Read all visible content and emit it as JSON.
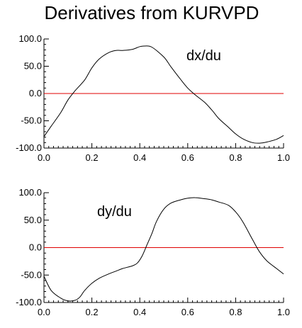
{
  "title": "Derivatives from KURVPD",
  "colors": {
    "axis": "#000000",
    "curve": "#000000",
    "zero_line": "#e00000",
    "background": "#ffffff"
  },
  "chart_data": [
    {
      "type": "line",
      "annotation": "dx/du",
      "xlim": [
        0.0,
        1.0
      ],
      "ylim": [
        -100.0,
        100.0
      ],
      "x_ticks": [
        "0.0",
        "0.2",
        "0.4",
        "0.6",
        "0.8",
        "1.0"
      ],
      "y_ticks": [
        "100.0",
        "50.0",
        "0.0",
        "-50.0",
        "-100.0"
      ],
      "reference_line_y": 0,
      "series": [
        {
          "x": [
            0.0,
            0.03,
            0.07,
            0.1,
            0.13,
            0.17,
            0.2,
            0.23,
            0.27,
            0.3,
            0.33,
            0.37,
            0.4,
            0.42,
            0.45,
            0.5,
            0.53,
            0.57,
            0.6,
            0.63,
            0.67,
            0.7,
            0.73,
            0.77,
            0.8,
            0.83,
            0.87,
            0.9,
            0.93,
            0.97,
            1.0
          ],
          "y": [
            -79,
            -60,
            -35,
            -12,
            5,
            25,
            47,
            63,
            75,
            79,
            79,
            81,
            86,
            87,
            85,
            67,
            49,
            26,
            10,
            -2,
            -16,
            -30,
            -46,
            -62,
            -74,
            -83,
            -90,
            -91,
            -89,
            -84,
            -77
          ]
        }
      ]
    },
    {
      "type": "line",
      "annotation": "dy/du",
      "xlim": [
        0.0,
        1.0
      ],
      "ylim": [
        -100.0,
        100.0
      ],
      "x_ticks": [
        "0.0",
        "0.2",
        "0.4",
        "0.6",
        "0.8",
        "1.0"
      ],
      "y_ticks": [
        "100.0",
        "50.0",
        "0.0",
        "-50.0",
        "-100.0"
      ],
      "reference_line_y": 0,
      "series": [
        {
          "x": [
            0.0,
            0.03,
            0.07,
            0.1,
            0.13,
            0.15,
            0.17,
            0.2,
            0.23,
            0.27,
            0.3,
            0.33,
            0.37,
            0.39,
            0.41,
            0.43,
            0.45,
            0.47,
            0.5,
            0.53,
            0.57,
            0.6,
            0.63,
            0.67,
            0.7,
            0.73,
            0.77,
            0.8,
            0.83,
            0.87,
            0.9,
            0.93,
            0.97,
            1.0
          ],
          "y": [
            -52,
            -78,
            -92,
            -97,
            -96,
            -90,
            -78,
            -65,
            -56,
            -48,
            -43,
            -38,
            -33,
            -28,
            -15,
            5,
            25,
            48,
            70,
            81,
            87,
            90,
            91,
            89,
            87,
            83,
            77,
            65,
            47,
            15,
            -8,
            -24,
            -38,
            -48
          ]
        }
      ]
    }
  ]
}
